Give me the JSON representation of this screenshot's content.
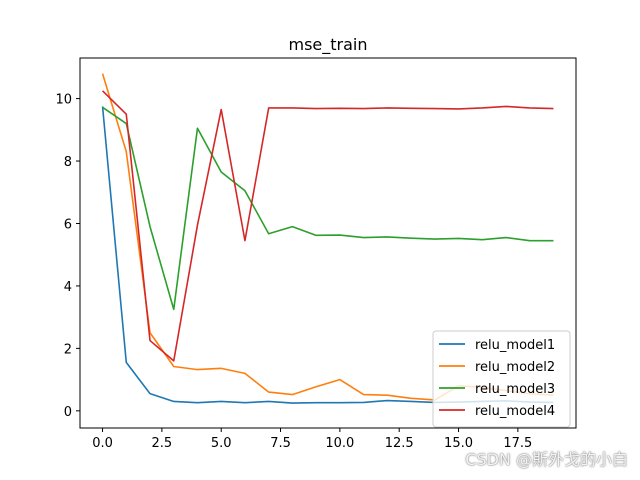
{
  "chart_data": {
    "type": "line",
    "title": "mse_train",
    "xlabel": "",
    "ylabel": "",
    "xlim": [
      -0.95,
      19.95
    ],
    "ylim": [
      -0.55,
      11.3
    ],
    "xticks": [
      0,
      2.5,
      5,
      7.5,
      10,
      12.5,
      15,
      17.5
    ],
    "xtick_labels": [
      "0.0",
      "2.5",
      "5.0",
      "7.5",
      "10.0",
      "12.5",
      "15.0",
      "17.5"
    ],
    "yticks": [
      0,
      2,
      4,
      6,
      8,
      10
    ],
    "ytick_labels": [
      "0",
      "2",
      "4",
      "6",
      "8",
      "10"
    ],
    "grid": false,
    "legend_position": "lower-right",
    "x": [
      0,
      1,
      2,
      3,
      4,
      5,
      6,
      7,
      8,
      9,
      10,
      11,
      12,
      13,
      14,
      15,
      16,
      17,
      18,
      19
    ],
    "series": [
      {
        "name": "relu_model1",
        "color": "#1f77b4",
        "values": [
          9.75,
          1.55,
          0.55,
          0.3,
          0.26,
          0.3,
          0.26,
          0.3,
          0.25,
          0.26,
          0.26,
          0.27,
          0.33,
          0.3,
          0.27,
          0.28,
          0.3,
          0.32,
          0.28,
          0.27
        ]
      },
      {
        "name": "relu_model2",
        "color": "#ff7f0e",
        "values": [
          10.8,
          8.3,
          2.5,
          1.42,
          1.32,
          1.36,
          1.2,
          0.6,
          0.52,
          0.77,
          1.0,
          0.52,
          0.5,
          0.4,
          0.35,
          0.8,
          0.75,
          0.65,
          0.55,
          0.5
        ]
      },
      {
        "name": "relu_model3",
        "color": "#2ca02c",
        "values": [
          9.72,
          9.2,
          5.9,
          3.25,
          9.05,
          7.65,
          7.05,
          5.67,
          5.9,
          5.62,
          5.63,
          5.55,
          5.57,
          5.53,
          5.5,
          5.52,
          5.48,
          5.55,
          5.45,
          5.45
        ]
      },
      {
        "name": "relu_model4",
        "color": "#d62728",
        "values": [
          10.25,
          9.5,
          2.25,
          1.6,
          5.95,
          9.65,
          5.45,
          9.7,
          9.7,
          9.68,
          9.69,
          9.68,
          9.7,
          9.69,
          9.68,
          9.67,
          9.7,
          9.75,
          9.7,
          9.68
        ]
      }
    ]
  },
  "watermark": "CSDN @斯外戈的小白"
}
